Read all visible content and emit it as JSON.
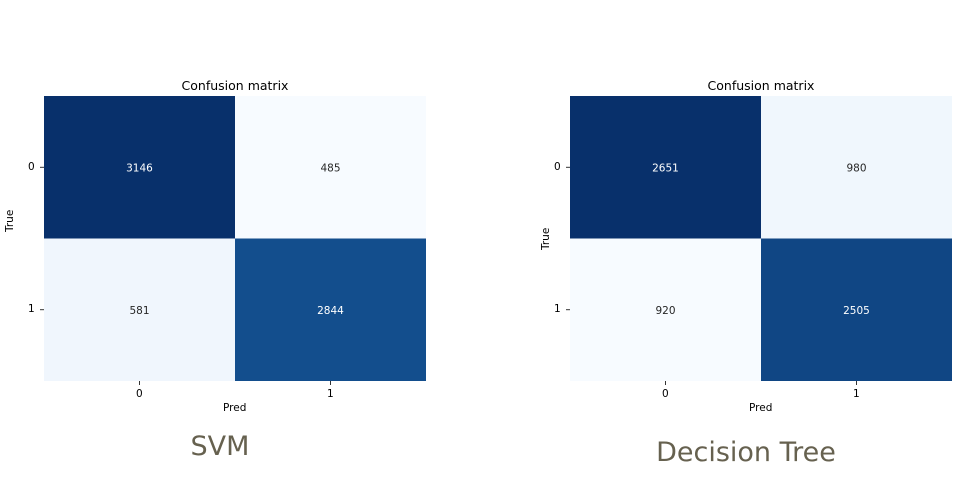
{
  "chart_data": [
    {
      "type": "heatmap",
      "title": "Confusion matrix",
      "xlabel": "Pred",
      "ylabel": "True",
      "x_ticks": [
        "0",
        "1"
      ],
      "y_ticks": [
        "0",
        "1"
      ],
      "matrix": [
        [
          3146,
          485
        ],
        [
          581,
          2844
        ]
      ],
      "caption": "SVM",
      "colormap": "Blues"
    },
    {
      "type": "heatmap",
      "title": "Confusion matrix",
      "xlabel": "Pred",
      "ylabel": "True",
      "x_ticks": [
        "0",
        "1"
      ],
      "y_ticks": [
        "0",
        "1"
      ],
      "matrix": [
        [
          2651,
          980
        ],
        [
          920,
          2505
        ]
      ],
      "caption": "Decision Tree",
      "colormap": "Blues"
    }
  ]
}
